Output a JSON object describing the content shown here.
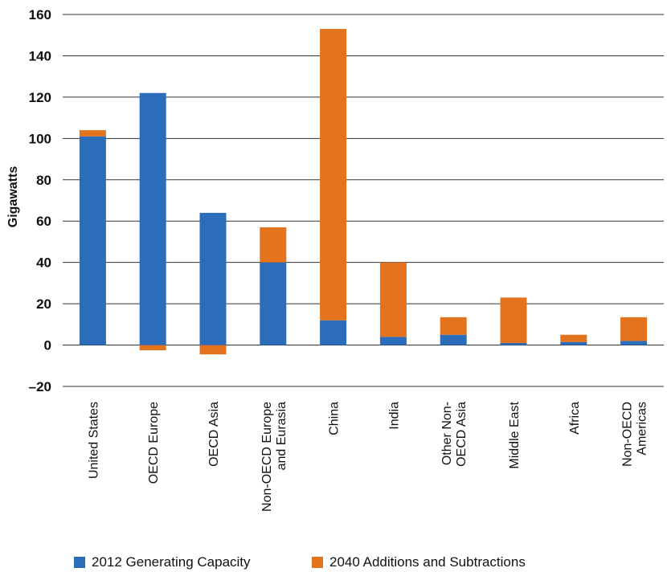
{
  "chart_data": {
    "type": "bar",
    "stacked": true,
    "title": "",
    "xlabel": "",
    "ylabel": "Gigawatts",
    "ylim": [
      -20,
      160
    ],
    "yticks": [
      -20,
      0,
      20,
      40,
      60,
      80,
      100,
      120,
      140,
      160
    ],
    "ytick_labels": [
      "–20",
      "0",
      "20",
      "40",
      "60",
      "80",
      "100",
      "120",
      "140",
      "160"
    ],
    "grid": "horizontal",
    "legend_position": "bottom",
    "categories": [
      [
        "United States"
      ],
      [
        "OECD Europe"
      ],
      [
        "OECD Asia"
      ],
      [
        "Non-OECD Europe",
        "and Eurasia"
      ],
      [
        "China"
      ],
      [
        "India"
      ],
      [
        "Other Non-",
        "OECD Asia"
      ],
      [
        "Middle East"
      ],
      [
        "Africa"
      ],
      [
        "Non-OECD",
        "Americas"
      ]
    ],
    "series": [
      {
        "name": "2012 Generating Capacity",
        "color": "#2b6dbb",
        "values": [
          101,
          122,
          64,
          40,
          12,
          4,
          5,
          1,
          1.5,
          2
        ]
      },
      {
        "name": "2040 Additions and Subtractions",
        "color": "#e3731c",
        "values": [
          3,
          -2.5,
          -4.5,
          17,
          141,
          36,
          8.5,
          22,
          3.5,
          11.5
        ]
      }
    ]
  }
}
